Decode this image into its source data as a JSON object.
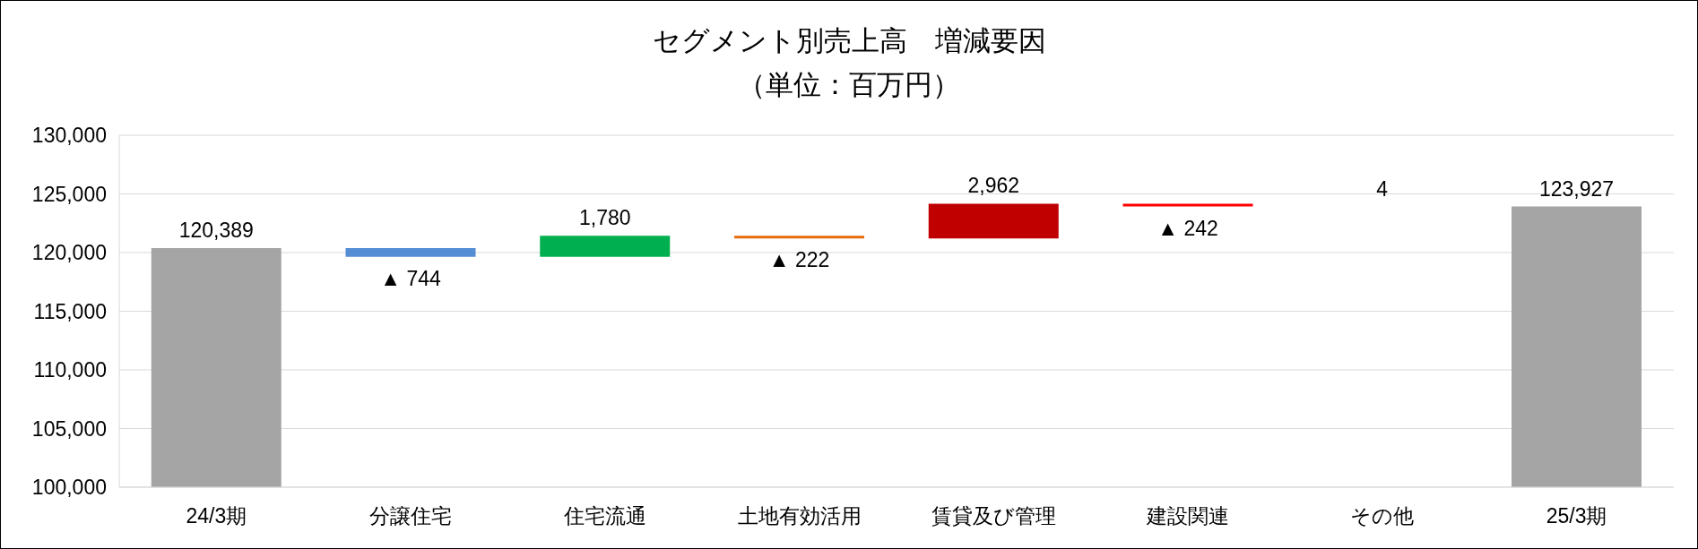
{
  "chart_data": {
    "type": "bar",
    "title": "セグメント別売上高　増減要因",
    "subtitle": "（単位：百万円）",
    "categories": [
      "24/3期",
      "分譲住宅",
      "住宅流通",
      "土地有効活用",
      "賃貸及び管理",
      "建設関連",
      "その他",
      "25/3期"
    ],
    "values": [
      120389,
      -744,
      1780,
      -222,
      2962,
      -242,
      4,
      123927
    ],
    "base": [
      null,
      120389,
      119645,
      121425,
      121203,
      124165,
      123923,
      null
    ],
    "colors": [
      "#a5a5a5",
      "#558ed5",
      "#00b050",
      "#e46c0a",
      "#c00000",
      "#ff0000",
      "#7f7f7f",
      "#a5a5a5"
    ],
    "value_labels": [
      "120,389",
      "▲ 744",
      "1,780",
      "▲ 222",
      "2,962",
      "▲ 242",
      "4",
      "123,927"
    ],
    "ylim": [
      100000,
      130000
    ],
    "yticks": [
      {
        "value": 100000,
        "label": "100,000"
      },
      {
        "value": 105000,
        "label": "105,000"
      },
      {
        "value": 110000,
        "label": "110,000"
      },
      {
        "value": 115000,
        "label": "115,000"
      },
      {
        "value": 120000,
        "label": "120,000"
      },
      {
        "value": 125000,
        "label": "125,000"
      },
      {
        "value": 130000,
        "label": "130,000"
      }
    ],
    "grid": "y"
  }
}
